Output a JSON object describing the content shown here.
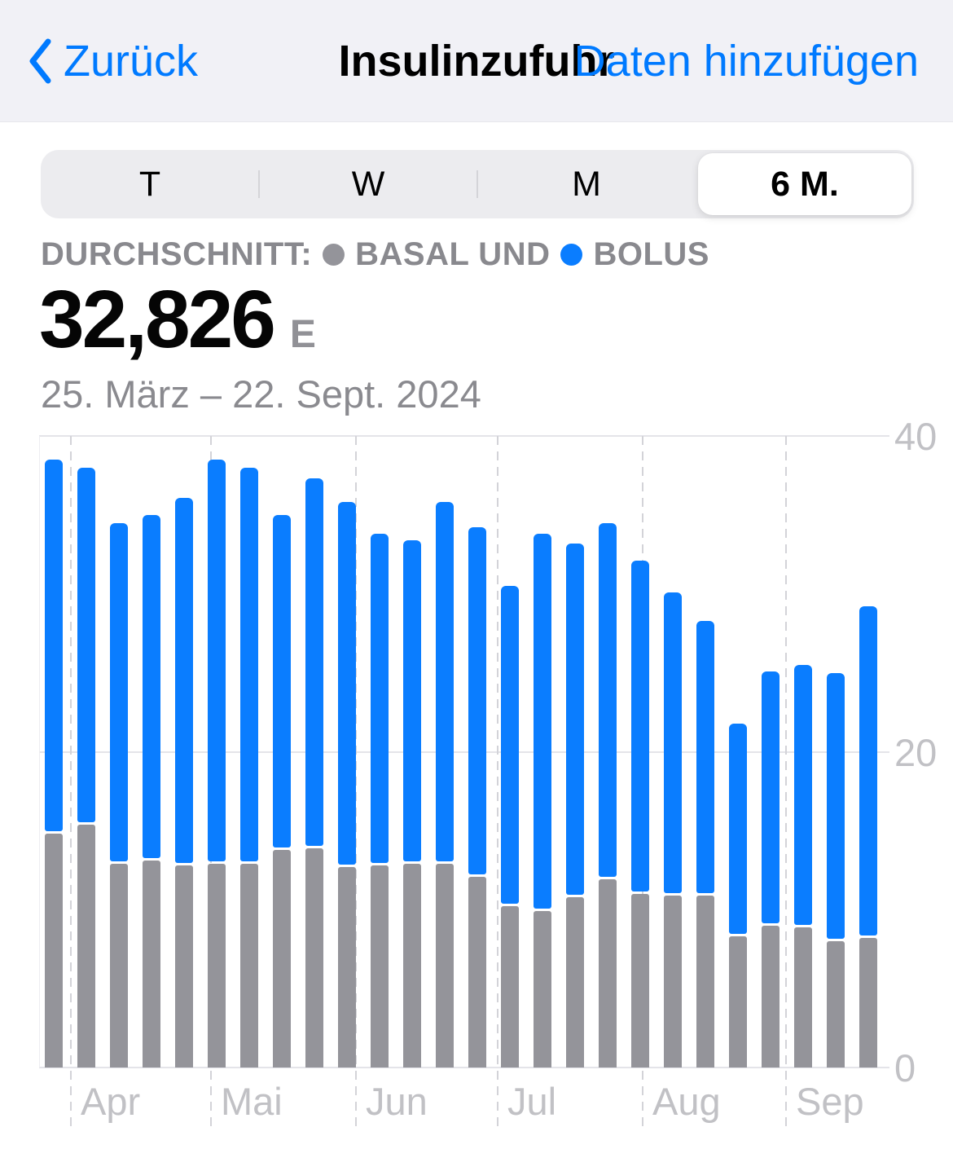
{
  "colors": {
    "accent_blue": "#007aff",
    "bolus_blue": "#0a7dff",
    "basal_gray": "#94949a",
    "header_bg": "#f1f1f6"
  },
  "nav": {
    "back_label": "Zurück",
    "title": "Insulinzufuhr",
    "action_label": "Daten hinzufügen"
  },
  "segmented": {
    "options": [
      "T",
      "W",
      "M",
      "6 M."
    ],
    "selected_index": 3
  },
  "summary": {
    "legend_prefix": "DURCHSCHNITT:",
    "legend_series1": "BASAL UND",
    "legend_series2": "BOLUS",
    "value": "32,826",
    "unit": "E",
    "date_range": "25. März – 22. Sept. 2024"
  },
  "chart_data": {
    "type": "bar",
    "stacked": true,
    "unit": "E",
    "ylim": [
      0,
      40
    ],
    "yticks": [
      0,
      20,
      40
    ],
    "grid": "horizontal solid, dashed vertical month separators",
    "legend_position": "inline above value",
    "x_description": "26 weekly bars, 25. März – 22. Sept. 2024",
    "series": [
      {
        "name": "Basal",
        "color": "#94949a",
        "values": [
          14.8,
          15.4,
          12.9,
          13.1,
          12.8,
          12.9,
          12.9,
          13.8,
          13.9,
          12.7,
          12.8,
          12.9,
          12.9,
          12.1,
          10.2,
          9.9,
          10.8,
          11.9,
          11.0,
          10.9,
          10.9,
          8.3,
          9.0,
          8.9,
          8.0,
          8.2
        ]
      },
      {
        "name": "Bolus",
        "color": "#0a7dff",
        "values": [
          23.7,
          22.6,
          21.6,
          21.9,
          23.3,
          25.6,
          25.1,
          21.2,
          23.4,
          23.1,
          21.0,
          20.5,
          22.9,
          22.1,
          20.3,
          23.9,
          22.4,
          22.6,
          21.1,
          19.2,
          17.4,
          13.5,
          16.1,
          16.6,
          17.0,
          21.0
        ]
      }
    ],
    "month_gridlines": [
      {
        "label": "Apr",
        "week_offset": 0.8
      },
      {
        "label": "Mai",
        "week_offset": 5.1
      },
      {
        "label": "Jun",
        "week_offset": 9.55
      },
      {
        "label": "Jul",
        "week_offset": 13.9
      },
      {
        "label": "Aug",
        "week_offset": 18.35
      },
      {
        "label": "Sep",
        "week_offset": 22.75
      }
    ]
  }
}
